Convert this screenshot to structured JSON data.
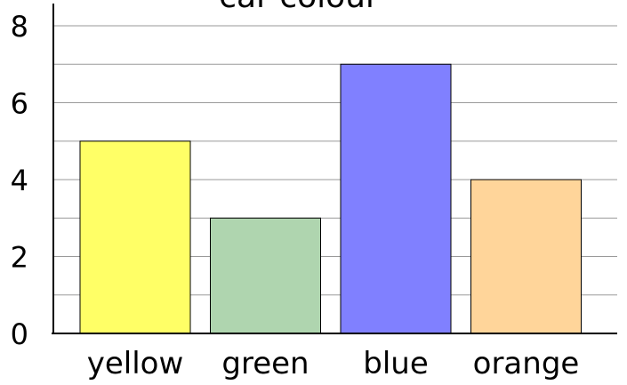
{
  "chart_data": {
    "type": "bar",
    "title": "car colour",
    "xlabel": "",
    "ylabel": "",
    "categories": [
      "yellow",
      "green",
      "blue",
      "orange"
    ],
    "values": [
      5,
      3,
      7,
      4
    ],
    "colors": [
      "#ffff66",
      "#afd5af",
      "#8080ff",
      "#ffd59a"
    ],
    "ylim": [
      0,
      8
    ],
    "yticks": [
      0,
      2,
      4,
      6,
      8
    ],
    "grid": true,
    "legend": "none"
  }
}
